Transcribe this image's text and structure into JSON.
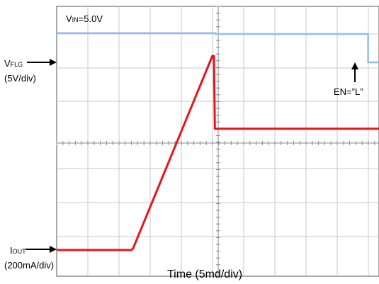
{
  "chart_data": {
    "type": "line",
    "grid": true,
    "title": "",
    "xlabel": "Time (5md/div)",
    "ylabel": "",
    "x_unit": "ms",
    "x_per_div": 5,
    "divisions": {
      "x": 10,
      "y": 8
    },
    "annotations": {
      "vin": {
        "main": "V",
        "sub": "IN",
        "tail": "=5.0V"
      },
      "vflg": {
        "main": "V",
        "sub": "FLG",
        "scale": "(5V/div)"
      },
      "iout": {
        "main": "I",
        "sub": "OUT",
        "scale": "(200mA/div)"
      },
      "en": "EN=”L”"
    },
    "series": [
      {
        "name": "V_FLG",
        "color": "#8fbef2",
        "x_div": [
          0,
          5.1,
          5.1,
          10.0,
          10.0,
          12.3,
          12.3
        ],
        "y_div": [
          8.55,
          8.55,
          8.5,
          8.5,
          6.85,
          6.85,
          8.5
        ]
      },
      {
        "name": "I_OUT",
        "color": "#e8141c",
        "x_div": [
          0,
          2.4,
          2.45,
          5.0,
          5.05,
          5.08,
          5.08,
          11.7,
          11.75,
          11.75,
          13.5
        ],
        "y_div": [
          -1.0,
          -1.0,
          -0.95,
          6.6,
          6.6,
          3.8,
          3.75,
          3.75,
          3.5,
          -1.0,
          -1.0
        ]
      }
    ]
  }
}
